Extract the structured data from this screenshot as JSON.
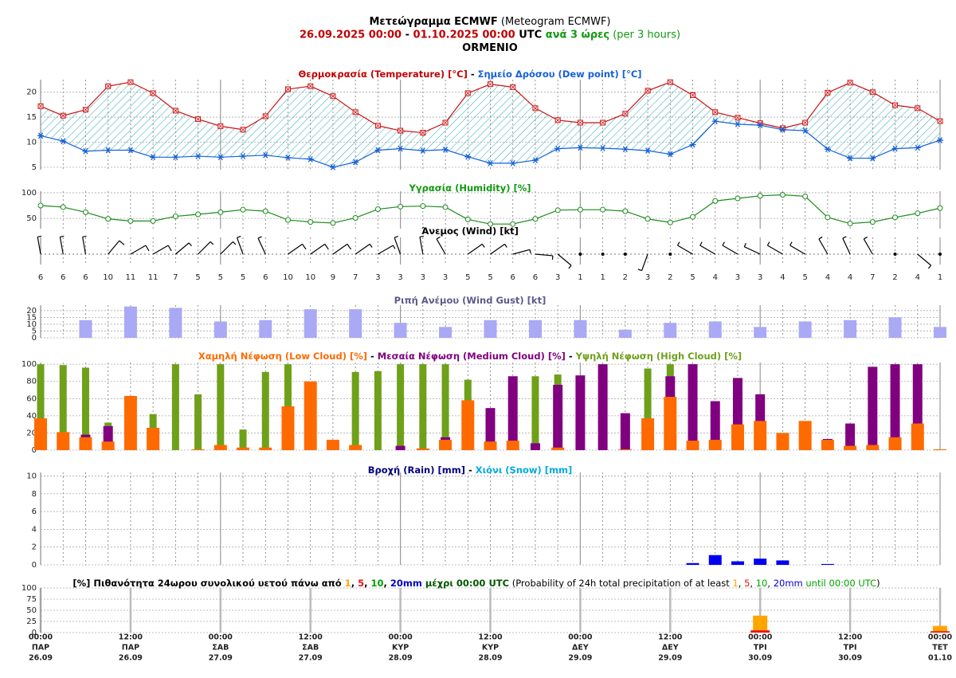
{
  "header": {
    "lines": [
      [
        {
          "text": "Μετεώγραμμα ECMWF",
          "color": "#000000",
          "bold": true
        },
        {
          "text": " (Meteogram ECMWF)",
          "color": "#000000",
          "bold": false
        }
      ],
      [
        {
          "text": "26.09.2025 00:00",
          "color": "#c00000",
          "bold": true
        },
        {
          "text": " - ",
          "color": "#000000",
          "bold": true
        },
        {
          "text": "01.10.2025 00:00",
          "color": "#c00000",
          "bold": true
        },
        {
          "text": " UTC",
          "color": "#000000",
          "bold": true
        },
        {
          "text": " ανά 3 ώρες",
          "color": "#119911",
          "bold": true
        },
        {
          "text": " (per 3 hours)",
          "color": "#119911",
          "bold": false
        }
      ],
      [
        {
          "text": "ORMENIO",
          "color": "#000000",
          "bold": true
        }
      ]
    ]
  },
  "time_axis": {
    "times": [
      "00:00",
      "12:00",
      "00:00",
      "12:00",
      "00:00",
      "12:00",
      "00:00",
      "12:00",
      "00:00",
      "12:00",
      "00:00"
    ],
    "days": [
      "ΠΑΡ",
      "ΠΑΡ",
      "ΣΑΒ",
      "ΣΑΒ",
      "ΚΥΡ",
      "ΚΥΡ",
      "ΔΕΥ",
      "ΔΕΥ",
      "ΤΡΙ",
      "ΤΡΙ",
      "ΤΕΤ"
    ],
    "dates": [
      "26.09",
      "26.09",
      "27.09",
      "27.09",
      "28.09",
      "28.09",
      "29.09",
      "29.09",
      "30.09",
      "30.09",
      "01.10"
    ]
  },
  "chart_data": [
    {
      "type": "temperature",
      "title_parts": [
        {
          "text": "Θερμοκρασία (Temperature) [°C]",
          "color": "#c00000"
        },
        {
          "text": " - ",
          "color": "#000000"
        },
        {
          "text": "Σημείο Δρόσου (Dew point) [°C]",
          "color": "#1560d8"
        }
      ],
      "ylim": [
        4.5,
        22.5
      ],
      "yticks": [
        5,
        10,
        15,
        20
      ],
      "grid": true,
      "series": [
        {
          "color": "#cc1111",
          "marker": "square",
          "values": [
            17.2,
            15.3,
            16.5,
            21.2,
            22,
            19.8,
            16.3,
            14.6,
            13.2,
            12.5,
            15.2,
            20.6,
            21.2,
            19.2,
            16,
            13.3,
            12.3,
            11.9,
            13.9,
            19.8,
            21.6,
            21,
            16.8,
            14.4,
            13.9,
            13.9,
            15.7,
            20.3,
            22,
            19.4,
            16,
            14.9,
            13.8,
            12.8,
            13.9,
            19.9,
            21.9,
            20,
            17.4,
            16.8,
            14.2
          ]
        },
        {
          "color": "#1560d8",
          "marker": "star",
          "values": [
            11.3,
            10.2,
            8.2,
            8.4,
            8.4,
            7,
            7,
            7.2,
            7,
            7.2,
            7.4,
            6.9,
            6.6,
            5,
            6,
            8.4,
            8.7,
            8.3,
            8.5,
            7.1,
            5.8,
            5.8,
            6.4,
            8.7,
            8.9,
            8.8,
            8.6,
            8.3,
            7.6,
            9.5,
            14.2,
            13.6,
            13.4,
            12.5,
            12.3,
            8.6,
            6.8,
            6.8,
            8.7,
            8.9,
            10.4
          ]
        }
      ],
      "fill_color": "#2aa8b8"
    },
    {
      "type": "line",
      "title_parts": [
        {
          "text": "Υγρασία (Humidity) [%]",
          "color": "#119911"
        }
      ],
      "ylim": [
        30,
        103
      ],
      "yticks": [
        50,
        100
      ],
      "grid": true,
      "series": [
        {
          "color": "#1a8a1a",
          "marker": "circle",
          "values": [
            75,
            72,
            62,
            49,
            45,
            45,
            54,
            58,
            62,
            67,
            64,
            47,
            43,
            41,
            51,
            68,
            73,
            74,
            72,
            48,
            39,
            39,
            49,
            66,
            67,
            67,
            64,
            49,
            42,
            53,
            84,
            89,
            94,
            96,
            93,
            52,
            40,
            43,
            52,
            60,
            70
          ]
        }
      ]
    },
    {
      "type": "wind",
      "title_parts": [
        {
          "text": "Άνεμος (Wind) [kt]",
          "color": "#000000"
        }
      ],
      "speeds": [
        6,
        6,
        6,
        10,
        11,
        11,
        7,
        5,
        5,
        5,
        6,
        10,
        10,
        9,
        7,
        3,
        3,
        3,
        3,
        5,
        5,
        6,
        6,
        3,
        1,
        1,
        2,
        3,
        2,
        5,
        4,
        3,
        3,
        4,
        5,
        4,
        4,
        7,
        2,
        4,
        1
      ],
      "directions": [
        350,
        350,
        350,
        40,
        60,
        60,
        50,
        45,
        45,
        340,
        335,
        55,
        55,
        55,
        55,
        60,
        340,
        350,
        330,
        55,
        55,
        75,
        95,
        130,
        0,
        0,
        110,
        200,
        200,
        300,
        300,
        300,
        295,
        300,
        300,
        330,
        335,
        330,
        290,
        130,
        0
      ]
    },
    {
      "type": "bar",
      "title_parts": [
        {
          "text": "Ριπή Ανέμου (Wind Gust) [kt]",
          "color": "#5a5a88"
        }
      ],
      "ylim": [
        0,
        24
      ],
      "yticks": [
        0,
        5,
        10,
        15,
        20
      ],
      "grid": true,
      "series": [
        {
          "color": "#a9a9f5",
          "width": 16,
          "values": [
            null,
            null,
            13,
            null,
            23,
            null,
            22,
            null,
            12,
            null,
            13,
            null,
            21,
            null,
            21,
            null,
            11,
            null,
            8,
            null,
            13,
            null,
            13,
            null,
            13,
            null,
            6,
            null,
            11,
            null,
            12,
            null,
            8,
            null,
            12,
            null,
            13,
            null,
            15,
            null,
            8
          ]
        }
      ]
    },
    {
      "type": "bar",
      "title_parts": [
        {
          "text": "Χαμηλή Νέφωση (Low Cloud) [%]",
          "color": "#ff6a00"
        },
        {
          "text": " - ",
          "color": "#000000"
        },
        {
          "text": "Μεσαία Νέφωση (Medium Cloud) [%]",
          "color": "#800080"
        },
        {
          "text": " - ",
          "color": "#000000"
        },
        {
          "text": "Υψηλή Νέφωση (High Cloud) [%]",
          "color": "#6fa01a"
        }
      ],
      "ylim": [
        0,
        102
      ],
      "yticks": [
        0,
        20,
        40,
        60,
        80,
        100
      ],
      "grid": true,
      "series": [
        {
          "color": "#6fa01a",
          "width": 9,
          "values": [
            100,
            99,
            96,
            32,
            0,
            42,
            100,
            65,
            100,
            24,
            91,
            100,
            0,
            0,
            91,
            92,
            100,
            100,
            100,
            82,
            0,
            0,
            86,
            88,
            0,
            0,
            0,
            95,
            100,
            0,
            0,
            0,
            0,
            0,
            0,
            0,
            0,
            0,
            0,
            0,
            0
          ]
        },
        {
          "color": "#800080",
          "width": 12,
          "values": [
            0,
            0,
            18,
            28,
            63,
            0,
            0,
            0,
            0,
            0,
            0,
            0,
            0,
            0,
            0,
            0,
            5,
            0,
            15,
            0,
            49,
            86,
            8,
            76,
            87,
            100,
            43,
            0,
            86,
            100,
            57,
            84,
            65,
            0,
            0,
            13,
            31,
            97,
            100,
            100,
            0
          ]
        },
        {
          "color": "#ff6a00",
          "width": 16,
          "values": [
            37,
            21,
            15,
            10,
            63,
            26,
            0,
            1,
            6,
            3,
            3,
            51,
            80,
            12,
            6,
            0,
            0,
            2,
            12,
            58,
            10,
            11,
            0,
            3,
            0,
            0,
            1,
            37,
            62,
            11,
            12,
            30,
            34,
            20,
            34,
            12,
            5,
            6,
            15,
            31,
            1
          ]
        }
      ]
    },
    {
      "type": "bar",
      "title_parts": [
        {
          "text": "Βροχή (Rain) [mm]",
          "color": "#000080"
        },
        {
          "text": " - ",
          "color": "#000000"
        },
        {
          "text": "Χιόνι (Snow) [mm]",
          "color": "#00aadd"
        }
      ],
      "ylim": [
        0,
        10.4
      ],
      "yticks": [
        0,
        2,
        4,
        6,
        8,
        10
      ],
      "grid": true,
      "series": [
        {
          "color": "#0000ee",
          "width": 16,
          "values": [
            0,
            0,
            0,
            0,
            0,
            0,
            0,
            0,
            0,
            0,
            0,
            0,
            0,
            0,
            0,
            0,
            0,
            0,
            0,
            0,
            0,
            0,
            0,
            0,
            0,
            0,
            0,
            0,
            0,
            0.2,
            1.1,
            0.4,
            0.7,
            0.5,
            0,
            0.1,
            0,
            0,
            0,
            0,
            0
          ]
        },
        {
          "color": "#00aadd",
          "width": 16,
          "values": [
            0,
            0,
            0,
            0,
            0,
            0,
            0,
            0,
            0,
            0,
            0,
            0,
            0,
            0,
            0,
            0,
            0,
            0,
            0,
            0,
            0,
            0,
            0,
            0,
            0,
            0,
            0,
            0,
            0,
            0,
            0,
            0,
            0,
            0,
            0,
            0,
            0,
            0,
            0,
            0,
            0
          ]
        }
      ]
    },
    {
      "type": "probability",
      "title_parts": [
        {
          "text": "[%] Πιθανότητα 24ωρου συνολικού υετού πάνω από ",
          "color": "#000000",
          "bold": true
        },
        {
          "text": "1",
          "color": "#ffa500",
          "bold": true
        },
        {
          "text": ", ",
          "color": "#000000",
          "bold": true
        },
        {
          "text": "5",
          "color": "#ee1111",
          "bold": true
        },
        {
          "text": ", ",
          "color": "#000000",
          "bold": true
        },
        {
          "text": "10",
          "color": "#00a000",
          "bold": true
        },
        {
          "text": ", ",
          "color": "#000000",
          "bold": true
        },
        {
          "text": "20mm",
          "color": "#0000cc",
          "bold": true
        },
        {
          "text": " μέχρι 00:00 UTC",
          "color": "#005500",
          "bold": true
        },
        {
          "text": " (Probability of 24h total precipitation of at least ",
          "color": "#000000",
          "bold": false
        },
        {
          "text": "1",
          "color": "#ffa500",
          "bold": false
        },
        {
          "text": ", ",
          "color": "#000000",
          "bold": false
        },
        {
          "text": "5",
          "color": "#ee1111",
          "bold": false
        },
        {
          "text": ", ",
          "color": "#000000",
          "bold": false
        },
        {
          "text": "10",
          "color": "#00a000",
          "bold": false
        },
        {
          "text": ", ",
          "color": "#000000",
          "bold": false
        },
        {
          "text": "20mm",
          "color": "#0000cc",
          "bold": false
        },
        {
          "text": " until 00:00 UTC",
          "color": "#00a000",
          "bold": false
        },
        {
          "text": ")",
          "color": "#000000",
          "bold": false
        }
      ],
      "ylim": [
        0,
        100
      ],
      "yticks": [
        0,
        25,
        50,
        75,
        100
      ],
      "grid": true,
      "series": [
        {
          "color": "#ffa500",
          "width": 18,
          "values": [
            0,
            0,
            0,
            0,
            38,
            15
          ]
        },
        {
          "color": "#ee1111",
          "width": 24,
          "values": [
            0,
            0,
            0,
            0,
            5,
            3
          ]
        },
        {
          "color": "#00a000",
          "width": 20,
          "values": [
            0,
            0,
            0,
            0,
            0,
            0
          ]
        },
        {
          "color": "#0000cc",
          "width": 16,
          "values": [
            0,
            0,
            0,
            0,
            0,
            0
          ]
        }
      ]
    }
  ]
}
